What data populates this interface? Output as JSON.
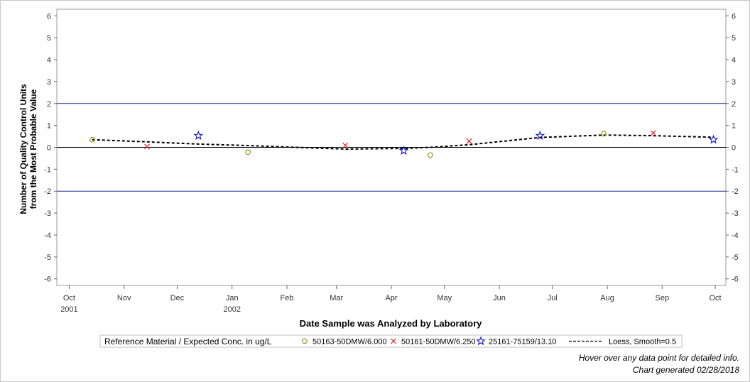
{
  "chart_data": {
    "type": "scatter",
    "title": "",
    "xlabel": "Date Sample was Analyzed by Laboratory",
    "ylabel_lines": [
      "Number of Quality Control Units",
      "from the Most Probable Value"
    ],
    "xlim": [
      "2001-09-24",
      "2002-10-07"
    ],
    "ylim": [
      -6.3,
      6.3
    ],
    "y_ticks": [
      -6,
      -5,
      -4,
      -3,
      -2,
      -1,
      0,
      1,
      2,
      3,
      4,
      5,
      6
    ],
    "x_ticks": [
      {
        "date": "2001-10-01",
        "label": "Oct",
        "year": "2001"
      },
      {
        "date": "2001-11-01",
        "label": "Nov",
        "year": ""
      },
      {
        "date": "2001-12-01",
        "label": "Dec",
        "year": ""
      },
      {
        "date": "2002-01-01",
        "label": "Jan",
        "year": "2002"
      },
      {
        "date": "2002-02-01",
        "label": "Feb",
        "year": ""
      },
      {
        "date": "2002-03-01",
        "label": "Mar",
        "year": ""
      },
      {
        "date": "2002-04-01",
        "label": "Apr",
        "year": ""
      },
      {
        "date": "2002-05-01",
        "label": "May",
        "year": ""
      },
      {
        "date": "2002-06-01",
        "label": "Jun",
        "year": ""
      },
      {
        "date": "2002-07-01",
        "label": "Jul",
        "year": ""
      },
      {
        "date": "2002-08-01",
        "label": "Aug",
        "year": ""
      },
      {
        "date": "2002-09-01",
        "label": "Sep",
        "year": ""
      },
      {
        "date": "2002-10-01",
        "label": "Oct",
        "year": ""
      }
    ],
    "reference_lines": [
      {
        "y": 2,
        "color": "#1a2a8a"
      },
      {
        "y": -2,
        "color": "#1a2a8a"
      },
      {
        "y": 0,
        "color": "#000000"
      }
    ],
    "series": [
      {
        "name": "50163-50DMW/6.000",
        "marker": "circle",
        "color": "#8c8c00",
        "points": [
          {
            "x": "2001-10-14",
            "y": 0.35
          },
          {
            "x": "2002-01-10",
            "y": -0.22
          },
          {
            "x": "2002-04-23",
            "y": -0.35
          },
          {
            "x": "2002-07-30",
            "y": 0.62
          }
        ]
      },
      {
        "name": "50161-50DMW/6.250",
        "marker": "x",
        "color": "#e0202a",
        "points": [
          {
            "x": "2001-11-14",
            "y": 0.03
          },
          {
            "x": "2002-03-06",
            "y": 0.09
          },
          {
            "x": "2002-05-15",
            "y": 0.28
          },
          {
            "x": "2002-08-27",
            "y": 0.65
          }
        ]
      },
      {
        "name": "25161-75159/13.10",
        "marker": "star",
        "color": "#1010c8",
        "points": [
          {
            "x": "2001-12-13",
            "y": 0.53
          },
          {
            "x": "2002-04-08",
            "y": -0.15
          },
          {
            "x": "2002-06-24",
            "y": 0.53
          },
          {
            "x": "2002-09-30",
            "y": 0.35
          }
        ]
      },
      {
        "name": "Loess, Smooth=0.5",
        "marker": "line",
        "color": "#000000",
        "points": [
          {
            "x": "2001-10-14",
            "y": 0.35
          },
          {
            "x": "2001-11-14",
            "y": 0.25
          },
          {
            "x": "2001-12-13",
            "y": 0.15
          },
          {
            "x": "2002-01-10",
            "y": 0.08
          },
          {
            "x": "2002-03-06",
            "y": -0.08
          },
          {
            "x": "2002-04-08",
            "y": -0.05
          },
          {
            "x": "2002-04-23",
            "y": 0.0
          },
          {
            "x": "2002-05-15",
            "y": 0.12
          },
          {
            "x": "2002-06-24",
            "y": 0.45
          },
          {
            "x": "2002-07-30",
            "y": 0.56
          },
          {
            "x": "2002-08-27",
            "y": 0.53
          },
          {
            "x": "2002-09-30",
            "y": 0.46
          }
        ]
      }
    ],
    "legend": {
      "title": "Reference Material / Expected Conc. in ug/L",
      "placement": "bottom"
    }
  },
  "notes": {
    "hover": "Hover over any data point for detailed info.",
    "generated": "Chart generated 02/28/2018"
  }
}
